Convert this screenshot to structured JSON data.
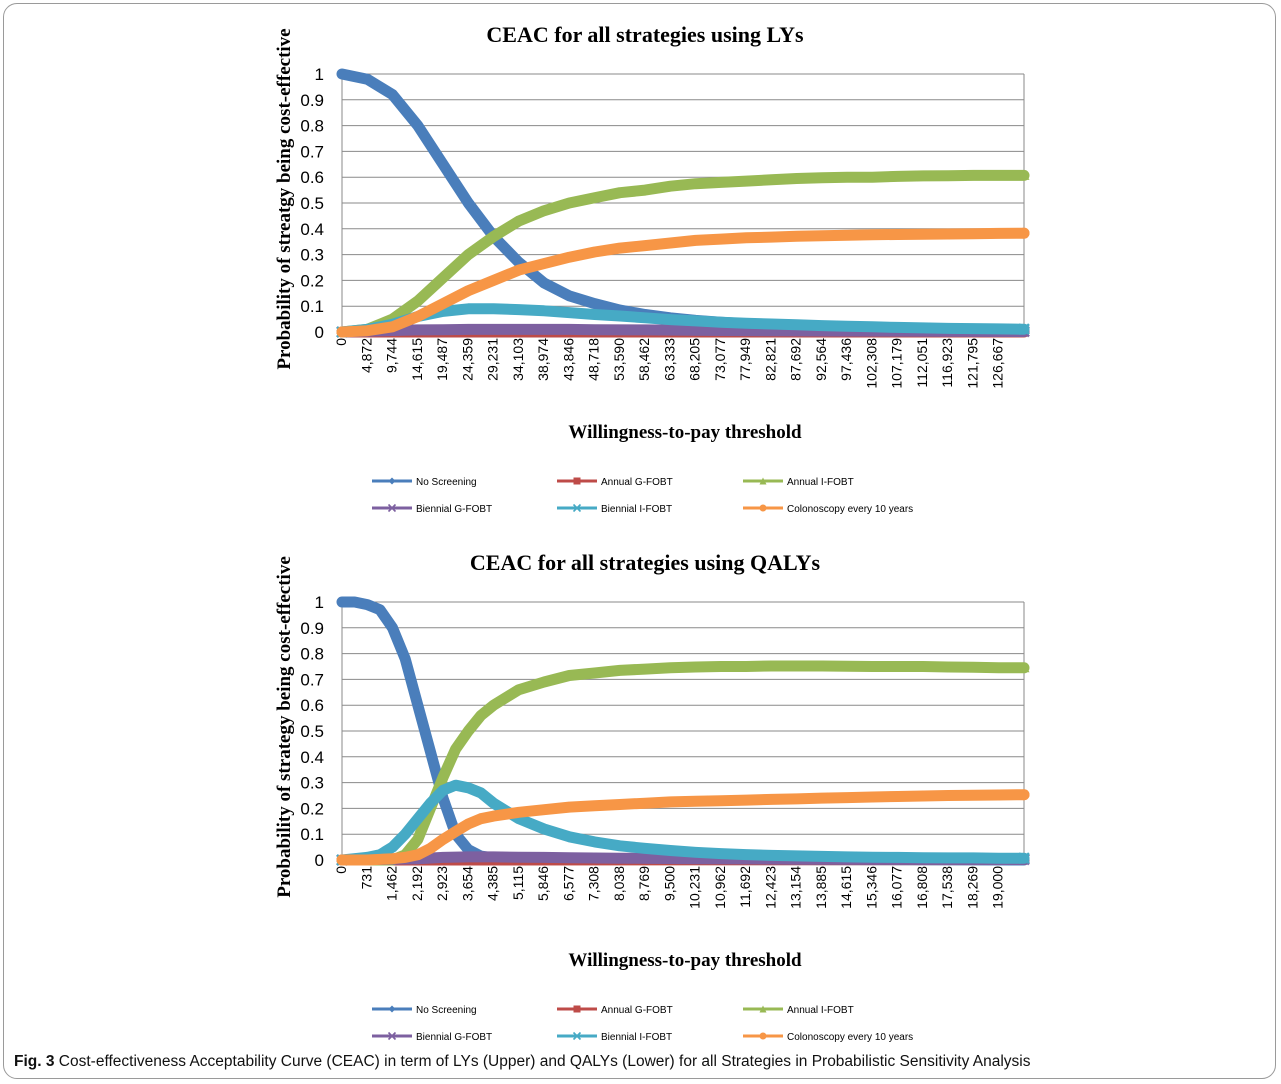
{
  "caption": {
    "label": "Fig. 3",
    "text": " Cost-effectiveness Acceptability Curve (CEAC) in term of LYs (Upper) and QALYs (Lower) for all Strategies in Probabilistic Sensitivity Analysis"
  },
  "chart_data": [
    {
      "type": "line",
      "title": "CEAC for all strategies using LYs",
      "xlabel": "Willingness-to-pay threshold",
      "ylabel": "Probability of streatgy being cost-effective",
      "ylim": [
        0,
        1
      ],
      "yticks": [
        "0",
        "0.1",
        "0.2",
        "0.3",
        "0.4",
        "0.5",
        "0.6",
        "0.7",
        "0.8",
        "0.9",
        "1"
      ],
      "xlim": [
        0,
        131538
      ],
      "xticks": [
        "0",
        "4,872",
        "9,744",
        "14,615",
        "19,487",
        "24,359",
        "29,231",
        "34,103",
        "38,974",
        "43,846",
        "48,718",
        "53,590",
        "58,462",
        "63,333",
        "68,205",
        "73,077",
        "77,949",
        "82,821",
        "87,692",
        "92,564",
        "97,436",
        "102,308",
        "107,179",
        "112,051",
        "116,923",
        "121,795",
        "126,667"
      ],
      "grid": "horizontal",
      "legend": "bottom",
      "series": [
        {
          "name": "No Screening",
          "color": "#4a7ebb",
          "marker": "diamond",
          "x": [
            0,
            4872,
            9744,
            14615,
            19487,
            24359,
            29231,
            34103,
            38974,
            43846,
            48718,
            53590,
            58462,
            63333,
            68205,
            73077,
            77949,
            82821,
            87692,
            92564,
            97436,
            102308,
            107179,
            112051,
            116923,
            121795,
            126667,
            131538
          ],
          "values": [
            1.0,
            0.98,
            0.92,
            0.8,
            0.65,
            0.5,
            0.37,
            0.27,
            0.19,
            0.14,
            0.11,
            0.085,
            0.068,
            0.055,
            0.045,
            0.038,
            0.032,
            0.027,
            0.023,
            0.02,
            0.017,
            0.015,
            0.013,
            0.011,
            0.01,
            0.009,
            0.008,
            0.008
          ]
        },
        {
          "name": "Annual G-FOBT",
          "color": "#be4b48",
          "marker": "square",
          "x": [
            0,
            131538
          ],
          "values": [
            0.0,
            0.0
          ]
        },
        {
          "name": "Annual I-FOBT",
          "color": "#98b954",
          "marker": "triangle",
          "x": [
            0,
            4872,
            9744,
            14615,
            19487,
            24359,
            29231,
            34103,
            38974,
            43846,
            48718,
            53590,
            58462,
            63333,
            68205,
            73077,
            77949,
            82821,
            87692,
            92564,
            97436,
            102308,
            107179,
            112051,
            116923,
            121795,
            126667,
            131538
          ],
          "values": [
            0.0,
            0.01,
            0.05,
            0.12,
            0.21,
            0.3,
            0.37,
            0.43,
            0.47,
            0.5,
            0.52,
            0.54,
            0.55,
            0.565,
            0.575,
            0.58,
            0.585,
            0.59,
            0.595,
            0.598,
            0.6,
            0.6,
            0.603,
            0.605,
            0.606,
            0.607,
            0.607,
            0.607
          ]
        },
        {
          "name": "Biennial G-FOBT",
          "color": "#7d60a0",
          "marker": "x",
          "x": [
            0,
            4872,
            9744,
            14615,
            19487,
            24359,
            29231,
            34103,
            38974,
            43846,
            48718,
            58462,
            73077,
            92564,
            131538
          ],
          "values": [
            0.0,
            0.003,
            0.006,
            0.008,
            0.009,
            0.01,
            0.01,
            0.01,
            0.01,
            0.01,
            0.009,
            0.008,
            0.006,
            0.004,
            0.002
          ]
        },
        {
          "name": "Biennial I-FOBT",
          "color": "#46aac5",
          "marker": "star",
          "x": [
            0,
            4872,
            9744,
            14615,
            19487,
            24359,
            29231,
            34103,
            38974,
            43846,
            48718,
            53590,
            58462,
            63333,
            68205,
            73077,
            77949,
            82821,
            87692,
            92564,
            97436,
            102308,
            107179,
            112051,
            116923,
            121795,
            126667,
            131538
          ],
          "values": [
            0.0,
            0.01,
            0.03,
            0.06,
            0.08,
            0.09,
            0.09,
            0.087,
            0.082,
            0.075,
            0.068,
            0.062,
            0.055,
            0.048,
            0.043,
            0.038,
            0.034,
            0.031,
            0.028,
            0.025,
            0.022,
            0.02,
            0.018,
            0.016,
            0.014,
            0.013,
            0.012,
            0.011
          ]
        },
        {
          "name": "Colonoscopy every 10 years",
          "color": "#f79646",
          "marker": "circle",
          "x": [
            0,
            4872,
            9744,
            14615,
            19487,
            24359,
            29231,
            34103,
            38974,
            43846,
            48718,
            53590,
            58462,
            63333,
            68205,
            73077,
            77949,
            82821,
            87692,
            92564,
            97436,
            102308,
            107179,
            112051,
            116923,
            121795,
            126667,
            131538
          ],
          "values": [
            0.0,
            0.005,
            0.02,
            0.06,
            0.11,
            0.16,
            0.2,
            0.24,
            0.265,
            0.29,
            0.31,
            0.325,
            0.335,
            0.345,
            0.355,
            0.36,
            0.365,
            0.368,
            0.371,
            0.373,
            0.375,
            0.377,
            0.378,
            0.379,
            0.38,
            0.381,
            0.382,
            0.383
          ]
        }
      ]
    },
    {
      "type": "line",
      "title": "CEAC for all strategies using QALYs",
      "xlabel": "Willingness-to-pay threshold",
      "ylabel": "Probability of strategy being cost-effective",
      "ylim": [
        0,
        1
      ],
      "yticks": [
        "0",
        "0.1",
        "0.2",
        "0.3",
        "0.4",
        "0.5",
        "0.6",
        "0.7",
        "0.8",
        "0.9",
        "1"
      ],
      "xlim": [
        0,
        19731
      ],
      "xticks": [
        "0",
        "731",
        "1,462",
        "2,192",
        "2,923",
        "3,654",
        "4,385",
        "5,115",
        "5,846",
        "6,577",
        "7,308",
        "8,038",
        "8,769",
        "9,500",
        "10,231",
        "10,962",
        "11,692",
        "12,423",
        "13,154",
        "13,885",
        "14,615",
        "15,346",
        "16,077",
        "16,808",
        "17,538",
        "18,269",
        "19,000"
      ],
      "grid": "horizontal",
      "legend": "bottom",
      "series": [
        {
          "name": "No Screening",
          "color": "#4a7ebb",
          "marker": "diamond",
          "x": [
            0,
            365,
            731,
            1096,
            1462,
            1827,
            2192,
            2558,
            2923,
            3288,
            3654,
            4019,
            4385,
            5115,
            5846,
            19731
          ],
          "values": [
            1.0,
            1.0,
            0.99,
            0.97,
            0.9,
            0.78,
            0.6,
            0.42,
            0.24,
            0.1,
            0.04,
            0.015,
            0.008,
            0.005,
            0.003,
            0.0
          ]
        },
        {
          "name": "Annual G-FOBT",
          "color": "#be4b48",
          "marker": "square",
          "x": [
            0,
            4385,
            19731
          ],
          "values": [
            0.0,
            0.0,
            0.002
          ]
        },
        {
          "name": "Annual I-FOBT",
          "color": "#98b954",
          "marker": "triangle",
          "x": [
            0,
            1462,
            1827,
            2192,
            2558,
            2923,
            3288,
            3654,
            4019,
            4385,
            5115,
            5846,
            6577,
            7308,
            8038,
            8769,
            9500,
            10231,
            10962,
            11692,
            12423,
            13154,
            13885,
            14615,
            15346,
            16077,
            16808,
            17538,
            18269,
            19000,
            19731
          ],
          "values": [
            0.0,
            0.0,
            0.02,
            0.08,
            0.2,
            0.32,
            0.43,
            0.5,
            0.56,
            0.6,
            0.66,
            0.69,
            0.715,
            0.725,
            0.735,
            0.74,
            0.745,
            0.748,
            0.75,
            0.75,
            0.752,
            0.752,
            0.752,
            0.751,
            0.75,
            0.75,
            0.75,
            0.748,
            0.747,
            0.745,
            0.745
          ]
        },
        {
          "name": "Biennial G-FOBT",
          "color": "#7d60a0",
          "marker": "x",
          "x": [
            0,
            2192,
            2923,
            3654,
            4385,
            5115,
            5846,
            6577,
            8038,
            10231,
            13154,
            19731
          ],
          "values": [
            0.0,
            0.005,
            0.01,
            0.012,
            0.012,
            0.011,
            0.01,
            0.009,
            0.007,
            0.005,
            0.003,
            0.002
          ]
        },
        {
          "name": "Biennial I-FOBT",
          "color": "#46aac5",
          "marker": "star",
          "x": [
            0,
            731,
            1096,
            1462,
            1827,
            2192,
            2558,
            2923,
            3288,
            3654,
            4019,
            4385,
            5115,
            5846,
            6577,
            7308,
            8038,
            8769,
            9500,
            10231,
            10962,
            11692,
            12423,
            13154,
            13885,
            14615,
            15346,
            16077,
            16808,
            17538,
            18269,
            19000,
            19731
          ],
          "values": [
            0.0,
            0.01,
            0.02,
            0.05,
            0.1,
            0.16,
            0.22,
            0.27,
            0.29,
            0.28,
            0.26,
            0.22,
            0.16,
            0.12,
            0.09,
            0.07,
            0.055,
            0.045,
            0.037,
            0.03,
            0.025,
            0.021,
            0.018,
            0.016,
            0.014,
            0.012,
            0.011,
            0.01,
            0.009,
            0.008,
            0.008,
            0.007,
            0.007
          ]
        },
        {
          "name": "Colonoscopy every 10 years",
          "color": "#f79646",
          "marker": "circle",
          "x": [
            0,
            731,
            1462,
            1827,
            2192,
            2558,
            2923,
            3288,
            3654,
            4019,
            4385,
            5115,
            5846,
            6577,
            7308,
            8038,
            8769,
            9500,
            10231,
            10962,
            11692,
            12423,
            13154,
            13885,
            14615,
            15346,
            16077,
            16808,
            17538,
            18269,
            19000,
            19731
          ],
          "values": [
            0.0,
            0.0,
            0.005,
            0.01,
            0.02,
            0.045,
            0.08,
            0.11,
            0.14,
            0.16,
            0.17,
            0.185,
            0.195,
            0.205,
            0.21,
            0.215,
            0.22,
            0.225,
            0.228,
            0.23,
            0.232,
            0.235,
            0.237,
            0.24,
            0.242,
            0.244,
            0.246,
            0.248,
            0.25,
            0.251,
            0.252,
            0.253
          ]
        }
      ]
    }
  ]
}
